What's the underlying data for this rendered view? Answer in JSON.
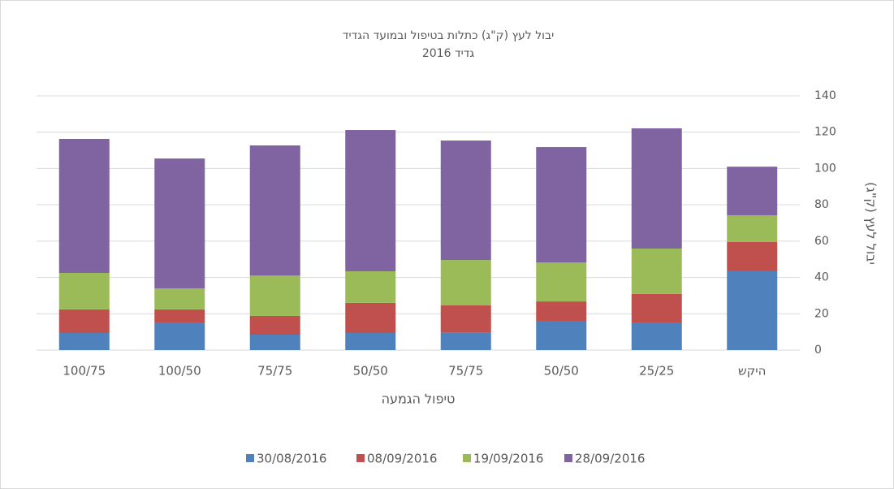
{
  "chart_data": {
    "type": "stacked_bar",
    "title": "יבול לעץ (ק\"ג) כתלות בטיפול ובמועד הגדיד",
    "subtitle": "גדיד 2016",
    "x_label": "טיפול הגמעה",
    "y_label": "יבול לעץ (ק\"ג)",
    "categories": [
      "100/75",
      "100/50",
      "75/75",
      "50/50",
      "75/75",
      "50/50",
      "25/25",
      "היקש"
    ],
    "series": [
      {
        "name": "30/08/2016",
        "color": "#4f81bd",
        "values": [
          9.4,
          14.8,
          8.5,
          9.4,
          9.8,
          16.1,
          14.8,
          43.4
        ]
      },
      {
        "name": "08/09/2016",
        "color": "#c0504d",
        "values": [
          13,
          7.6,
          10.3,
          16.6,
          14.8,
          10.7,
          16.1,
          16.1
        ]
      },
      {
        "name": "19/09/2016",
        "color": "#9bbb59",
        "values": [
          20.1,
          11.6,
          22.2,
          17.4,
          25,
          21.5,
          25,
          14.7
        ]
      },
      {
        "name": "28/09/2016",
        "color": "#8064a2",
        "values": [
          73.8,
          71.5,
          71.7,
          77.8,
          65.8,
          63.5,
          66.2,
          26.8
        ]
      }
    ],
    "ylim": [
      0,
      140
    ],
    "yticks": [
      0,
      20,
      40,
      60,
      80,
      100,
      120,
      140
    ],
    "grid": true,
    "y_axis_side": "right",
    "legend": "bottom"
  }
}
